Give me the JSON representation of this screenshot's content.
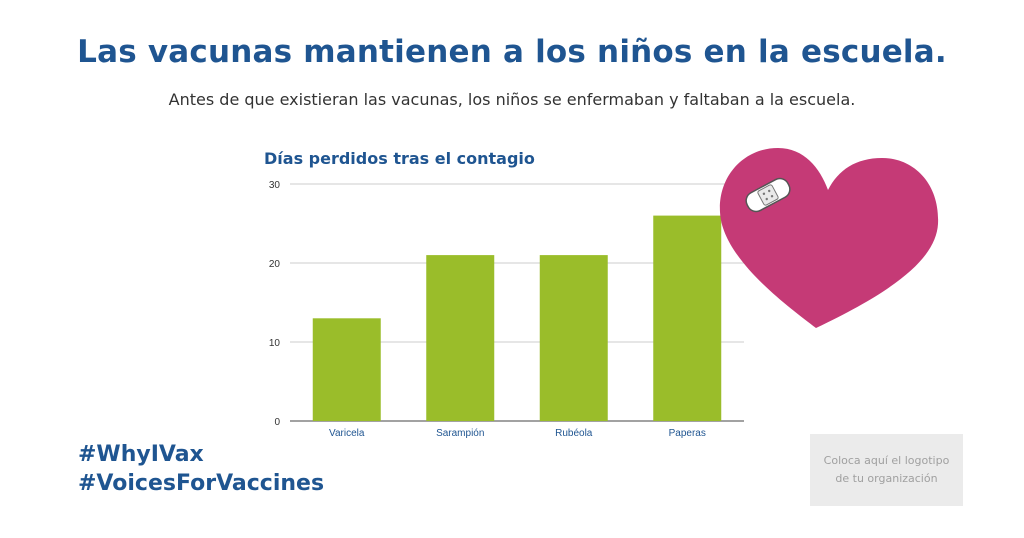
{
  "header": {
    "title": "Las vacunas mantienen a los niños en la escuela.",
    "subtitle": "Antes de que existieran las vacunas, los niños se enfermaban y faltaban a la escuela."
  },
  "chart_data": {
    "type": "bar",
    "title": "Días perdidos tras el contagio",
    "categories": [
      "Varicela",
      "Sarampión",
      "Rubéola",
      "Paperas"
    ],
    "values": [
      13,
      21,
      21,
      26
    ],
    "ylim": [
      0,
      30
    ],
    "yticks": [
      0,
      10,
      20,
      30
    ],
    "grid": true,
    "bar_color": "#9abd2a",
    "title_color": "#1f5591",
    "label_color": "#1f5591"
  },
  "hashtags": [
    "#WhyIVax",
    "#VoicesForVaccines"
  ],
  "logo_placeholder": {
    "line1": "Coloca aquí el logotipo",
    "line2": "de tu organización"
  },
  "decoration": {
    "heart_icon": "heart-with-bandage",
    "heart_color": "#c53a76"
  }
}
